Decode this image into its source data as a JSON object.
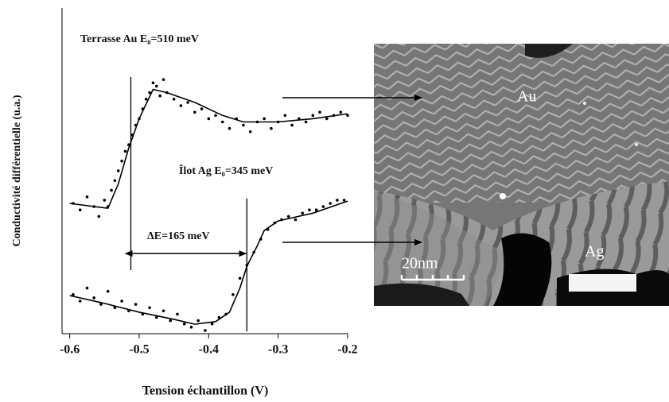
{
  "chart_data": {
    "type": "scatter",
    "xlabel": "Tension échantillon (V)",
    "ylabel": "Conductivité différentielle (u.a.)",
    "xlim": [
      -0.611,
      -0.2
    ],
    "xticks": [
      -0.6,
      -0.5,
      -0.4,
      -0.3,
      -0.2
    ],
    "ylim": [
      0,
      100
    ],
    "annotations": [
      "Terrasse Au E₀=510 meV",
      "Îlot Ag E₀=345 meV",
      "ΔE=165 meV"
    ],
    "series": [
      {
        "color": "#000000",
        "x": [
          -0.595,
          -0.585,
          -0.575,
          -0.565,
          -0.558,
          -0.55,
          -0.545,
          -0.54,
          -0.535,
          -0.53,
          -0.525,
          -0.52,
          -0.515,
          -0.51,
          -0.505,
          -0.5,
          -0.495,
          -0.49,
          -0.485,
          -0.48,
          -0.475,
          -0.47,
          -0.465,
          -0.46,
          -0.45,
          -0.44,
          -0.43,
          -0.42,
          -0.41,
          -0.4,
          -0.39,
          -0.38,
          -0.37,
          -0.36,
          -0.35,
          -0.34,
          -0.33,
          -0.32,
          -0.31,
          -0.3,
          -0.29,
          -0.28,
          -0.27,
          -0.26,
          -0.25,
          -0.24,
          -0.23,
          -0.22,
          -0.21,
          -0.2
        ],
        "values": [
          40,
          38,
          42,
          39,
          36,
          41,
          39,
          44,
          47,
          50,
          53,
          56,
          58,
          61,
          64,
          66,
          69,
          72,
          74,
          77,
          76,
          73,
          78,
          74,
          72,
          70,
          71,
          68,
          69,
          66,
          67,
          65,
          63,
          66,
          64,
          62,
          65,
          66,
          63,
          65,
          67,
          64,
          66,
          65,
          67,
          68,
          66,
          67,
          68,
          67
        ]
      },
      {
        "color": "#000000",
        "x": [
          -0.595,
          -0.585,
          -0.575,
          -0.565,
          -0.555,
          -0.545,
          -0.535,
          -0.525,
          -0.515,
          -0.505,
          -0.495,
          -0.485,
          -0.475,
          -0.465,
          -0.455,
          -0.445,
          -0.435,
          -0.425,
          -0.415,
          -0.405,
          -0.395,
          -0.385,
          -0.375,
          -0.365,
          -0.355,
          -0.345,
          -0.335,
          -0.325,
          -0.315,
          -0.305,
          -0.295,
          -0.285,
          -0.275,
          -0.265,
          -0.255,
          -0.245,
          -0.235,
          -0.225,
          -0.215,
          -0.205
        ],
        "values": [
          12,
          10,
          14,
          11,
          9,
          13,
          8,
          10,
          7,
          9,
          6,
          8,
          5,
          7,
          4,
          6,
          3,
          2,
          4,
          1,
          3,
          5,
          6,
          12,
          17,
          21,
          25,
          29,
          32,
          34,
          35,
          36,
          35,
          37,
          38,
          38,
          39,
          40,
          41,
          41
        ]
      }
    ],
    "fits": [
      {
        "color": "#000000",
        "x": [
          -0.6,
          -0.545,
          -0.53,
          -0.515,
          -0.5,
          -0.48,
          -0.46,
          -0.42,
          -0.38,
          -0.35,
          -0.3,
          -0.25,
          -0.2
        ],
        "values": [
          40,
          38.5,
          46,
          57,
          66,
          75,
          74,
          71,
          67,
          65,
          65,
          66,
          67.5
        ]
      },
      {
        "color": "#000000",
        "x": [
          -0.6,
          -0.55,
          -0.5,
          -0.45,
          -0.42,
          -0.39,
          -0.37,
          -0.355,
          -0.345,
          -0.33,
          -0.32,
          -0.3,
          -0.25,
          -0.2
        ],
        "values": [
          11.7,
          9.3,
          6.6,
          4.4,
          2.9,
          3.7,
          6.6,
          14,
          20.7,
          27,
          31.7,
          34.6,
          37,
          40.7
        ]
      }
    ],
    "vlines": [
      {
        "x": -0.512,
        "y": [
          19.5,
          78.8
        ]
      },
      {
        "x": -0.345,
        "y": [
          0.7,
          41.5
        ]
      }
    ],
    "delta_arrow_y": 24.6
  },
  "image": {
    "labels": [
      "Au",
      "Ag",
      "20nm"
    ]
  }
}
